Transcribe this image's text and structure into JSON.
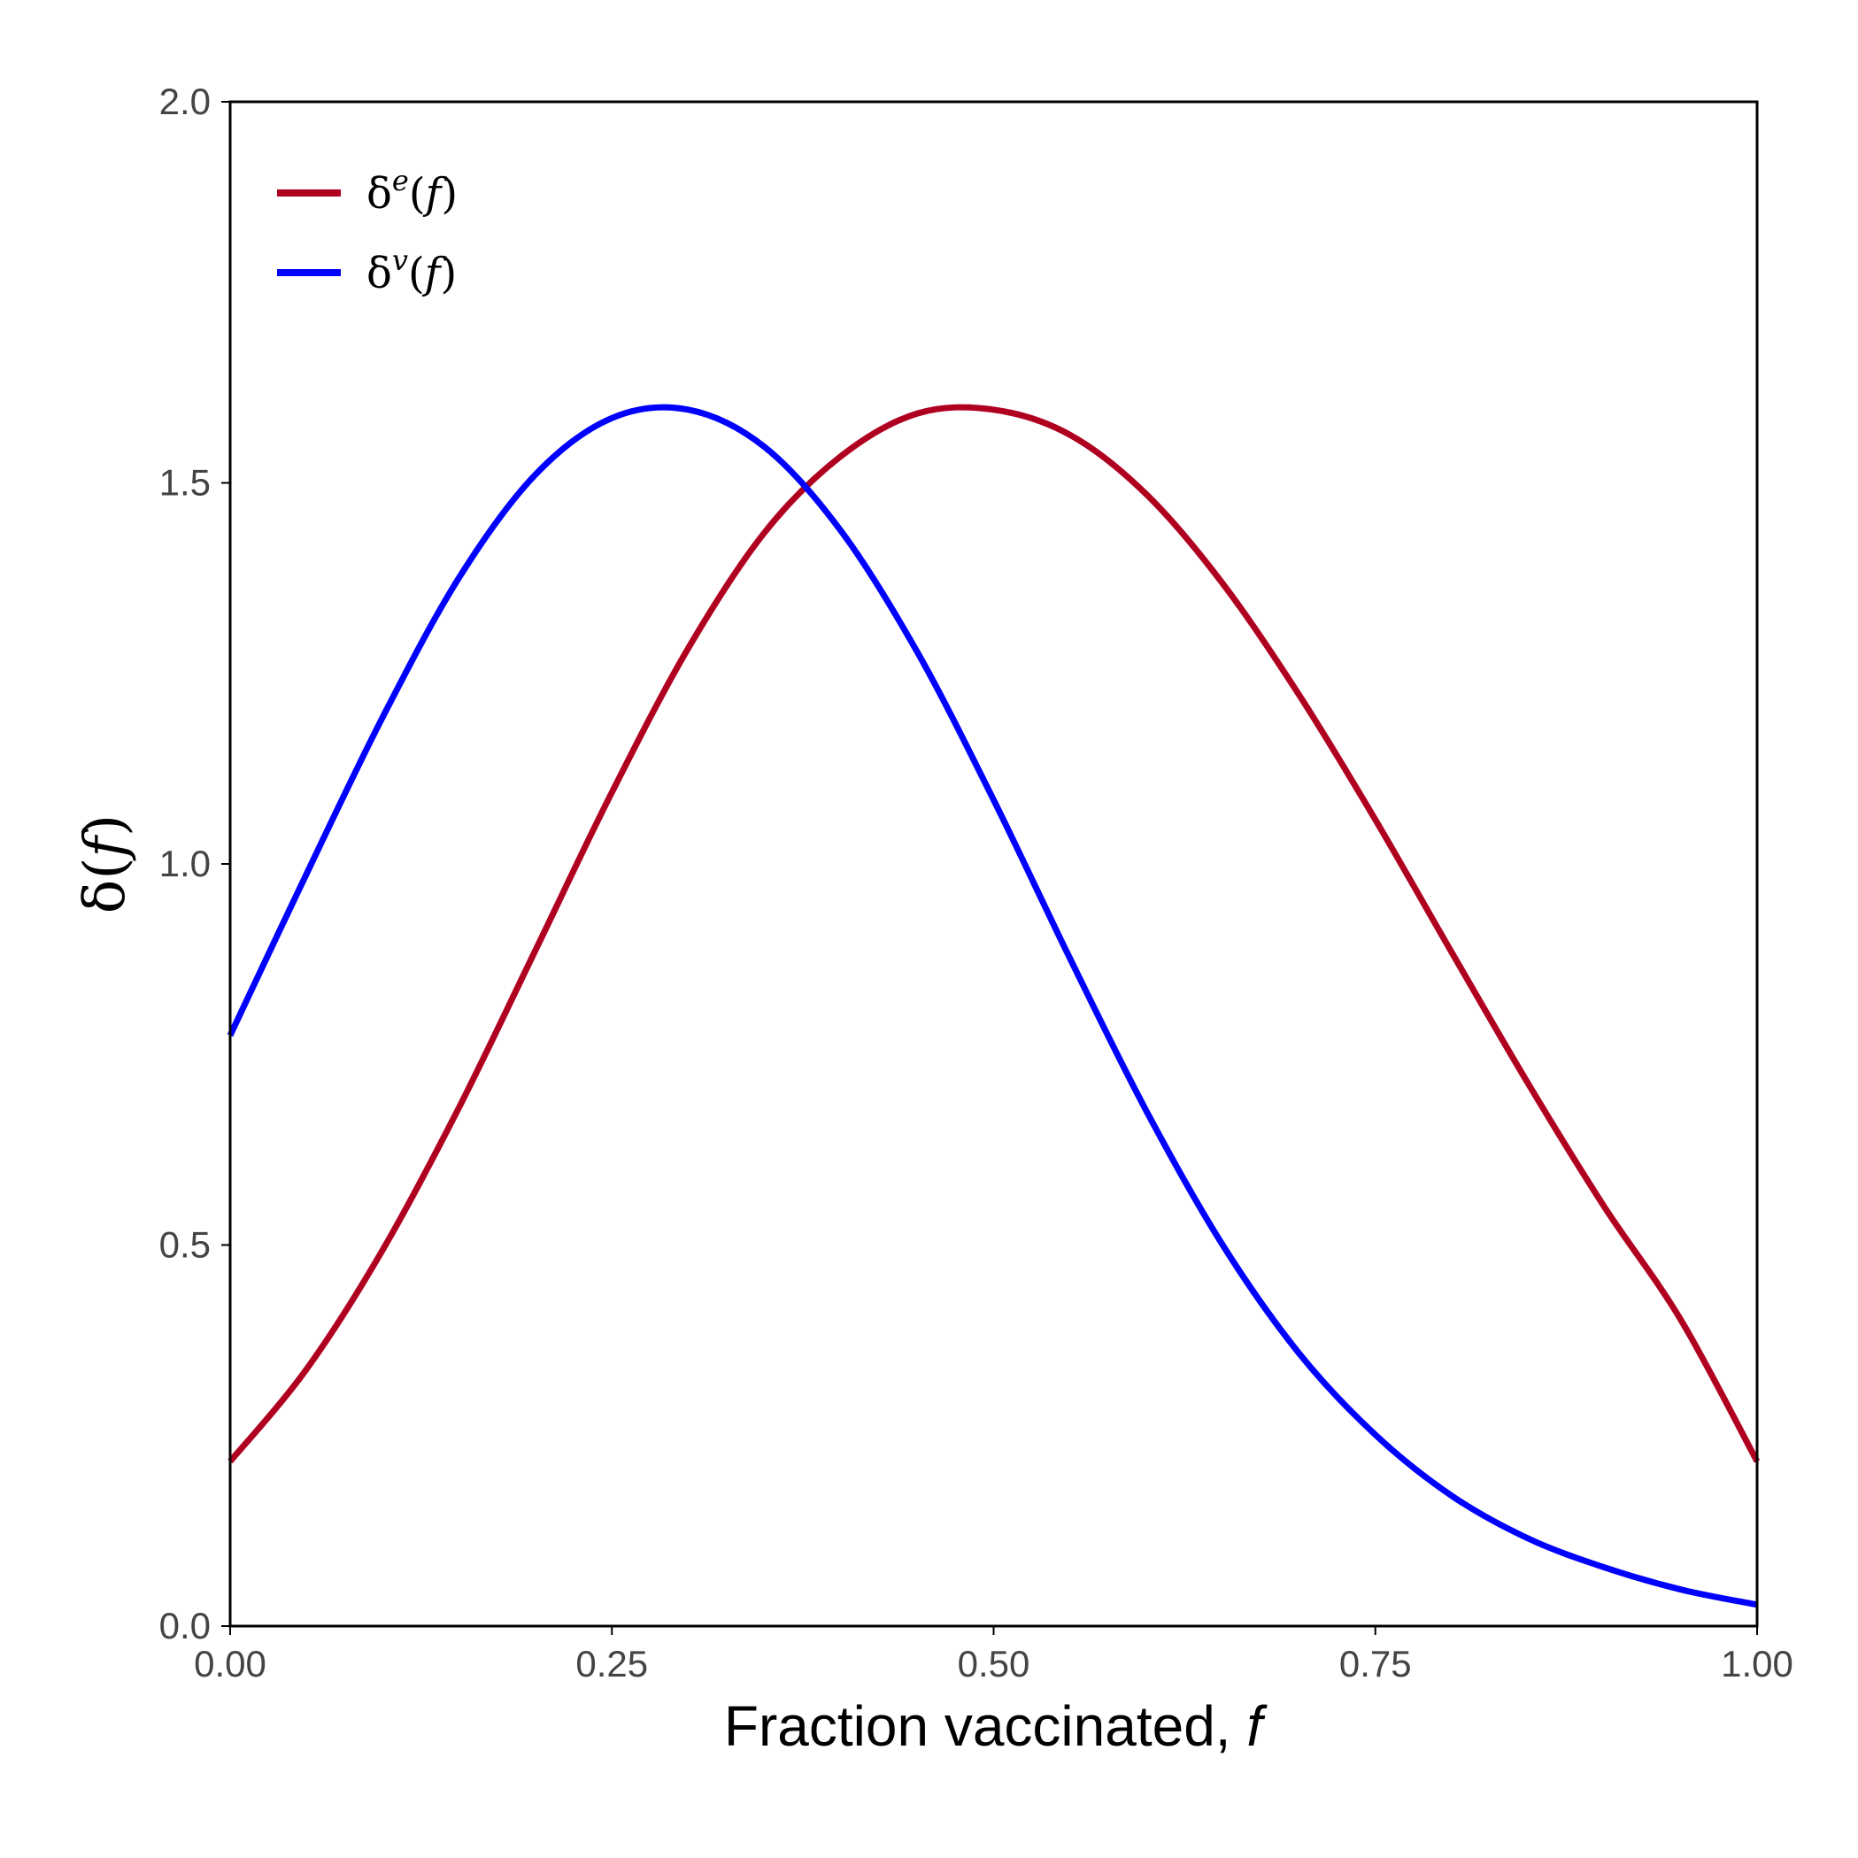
{
  "chart_data": {
    "type": "line",
    "title": "",
    "xlabel": "Fraction vaccinated, ",
    "xlabel_var": "f",
    "ylabel_sym": "δ",
    "ylabel_arg": "f",
    "xlim": [
      0,
      1
    ],
    "ylim": [
      0,
      2
    ],
    "xticks": [
      {
        "value": 0,
        "label": "0.00"
      },
      {
        "value": 0.25,
        "label": "0.25"
      },
      {
        "value": 0.5,
        "label": "0.50"
      },
      {
        "value": 0.75,
        "label": "0.75"
      },
      {
        "value": 1,
        "label": "1.00"
      }
    ],
    "yticks": [
      {
        "value": 0,
        "label": "0.0"
      },
      {
        "value": 0.5,
        "label": "0.5"
      },
      {
        "value": 1,
        "label": "1.0"
      },
      {
        "value": 1.5,
        "label": "1.5"
      },
      {
        "value": 2,
        "label": "2.0"
      }
    ],
    "grid": false,
    "legend_position": "top-left",
    "x": [
      0.0,
      0.05,
      0.1,
      0.15,
      0.2,
      0.25,
      0.3,
      0.35,
      0.4,
      0.45,
      0.5,
      0.55,
      0.6,
      0.65,
      0.7,
      0.75,
      0.8,
      0.85,
      0.9,
      0.95,
      1.0
    ],
    "series": [
      {
        "key": "e",
        "legend_sym": "δ",
        "legend_sup": "e",
        "legend_arg": "f",
        "color": "#b00020",
        "values": [
          0.216,
          0.337,
          0.494,
          0.681,
          0.887,
          1.094,
          1.283,
          1.435,
          1.535,
          1.591,
          1.596,
          1.563,
          1.485,
          1.368,
          1.222,
          1.058,
          0.884,
          0.712,
          0.55,
          0.402,
          0.216
        ]
      },
      {
        "key": "v",
        "legend_sym": "δ",
        "legend_sup": "v",
        "legend_arg": "f",
        "color": "#0000ff",
        "values": [
          0.775,
          0.987,
          1.193,
          1.376,
          1.511,
          1.585,
          1.596,
          1.547,
          1.437,
          1.278,
          1.084,
          0.876,
          0.676,
          0.5,
          0.358,
          0.251,
          0.171,
          0.115,
          0.077,
          0.048,
          0.028
        ]
      }
    ]
  }
}
